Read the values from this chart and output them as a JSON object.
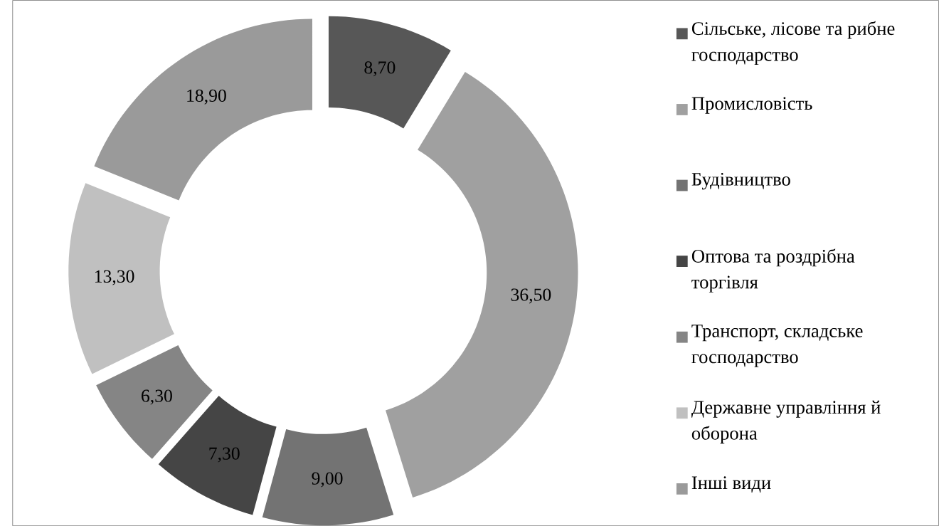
{
  "chart_data": {
    "type": "donut",
    "categories": [
      "Сільське, лісове та рибне господарство",
      "Промисловість",
      "Будівництво",
      "Оптова та роздрібна торгівля",
      "Транспорт, складське господарство",
      "Державне управління й оборона",
      "Інші види"
    ],
    "values": [
      8.7,
      36.5,
      9.0,
      7.3,
      6.3,
      13.3,
      18.9
    ],
    "value_labels": [
      "8,70",
      "36,50",
      "9,00",
      "7,30",
      "6,30",
      "13,30",
      "18,90"
    ],
    "colors": [
      "#575757",
      "#a0a0a0",
      "#737373",
      "#454545",
      "#858585",
      "#c0c0c0",
      "#9a9a9a"
    ],
    "legend": "right"
  }
}
